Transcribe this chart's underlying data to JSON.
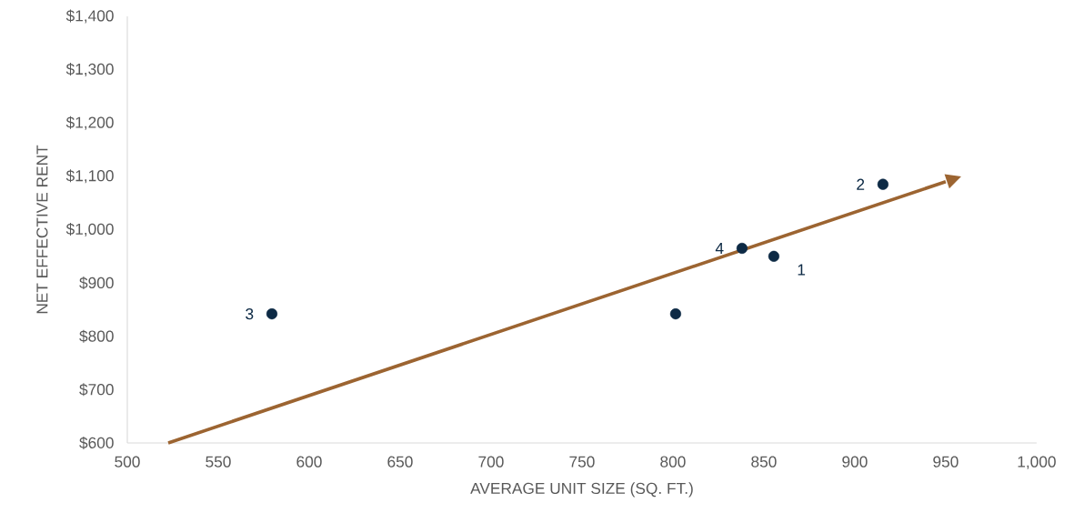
{
  "chart_data": {
    "type": "scatter",
    "xlabel": "AVERAGE UNIT SIZE (SQ. FT.)",
    "ylabel": "NET EFFECTIVE RENT",
    "xlim": [
      500,
      1000
    ],
    "ylim": [
      600,
      1400
    ],
    "xticks": [
      500,
      550,
      600,
      650,
      700,
      750,
      800,
      850,
      900,
      950,
      {
        "value": 1000,
        "label": "1,000"
      }
    ],
    "yticks": [
      {
        "value": 600,
        "label": "$600"
      },
      {
        "value": 700,
        "label": "$700"
      },
      {
        "value": 800,
        "label": "$800"
      },
      {
        "value": 900,
        "label": "$900"
      },
      {
        "value": 1000,
        "label": "$1,000"
      },
      {
        "value": 1100,
        "label": "$1,100"
      },
      {
        "value": 1200,
        "label": "$1,200"
      },
      {
        "value": 1300,
        "label": "$1,300"
      },
      {
        "value": 1400,
        "label": "$1,400"
      }
    ],
    "grid": false,
    "series": [
      {
        "type": "scatter",
        "marker": "circle",
        "color": "#0d2a45",
        "x": [
          579.5,
          801.5,
          838,
          855.5,
          915.5
        ],
        "values": [
          842,
          842,
          965,
          950,
          1085
        ]
      },
      {
        "type": "line",
        "marker": "none",
        "color": "#9c6431",
        "x": [
          522.5,
          950
        ],
        "values": [
          600,
          1090
        ]
      }
    ],
    "annotations": [
      {
        "text": "1",
        "x": 855.5,
        "y": 950
      },
      {
        "text": "2",
        "x": 915.5,
        "y": 1085
      },
      {
        "text": "3",
        "x": 579.5,
        "y": 842
      },
      {
        "text": "4",
        "x": 838,
        "y": 965
      }
    ]
  }
}
